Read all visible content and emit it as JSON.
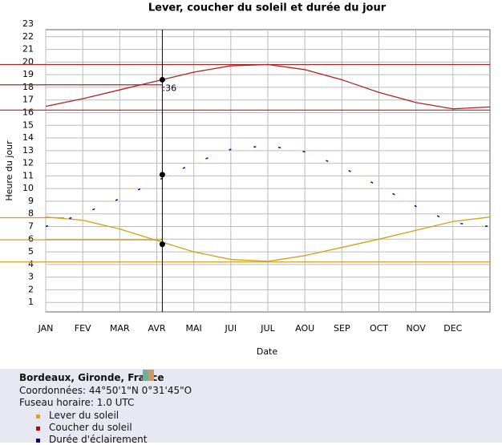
{
  "chart_data": {
    "type": "line",
    "title": "Lever, coucher du soleil et durée du jour",
    "y_label": "Heure du jour",
    "x_label": "Date",
    "xlim": [
      0,
      12
    ],
    "xticks": [
      {
        "value": 0,
        "label": "JAN"
      },
      {
        "value": 1,
        "label": "FEV"
      },
      {
        "value": 2,
        "label": "MAR"
      },
      {
        "value": 3,
        "label": "AVR"
      },
      {
        "value": 4,
        "label": "MAI"
      },
      {
        "value": 5,
        "label": "JUI"
      },
      {
        "value": 6,
        "label": "JUL"
      },
      {
        "value": 7,
        "label": "AOU"
      },
      {
        "value": 8,
        "label": "SEP"
      },
      {
        "value": 9,
        "label": "OCT"
      },
      {
        "value": 10,
        "label": "NOV"
      },
      {
        "value": 11,
        "label": "DEC"
      }
    ],
    "ylim": [
      0,
      23
    ],
    "yticks": [
      1,
      2,
      3,
      4,
      5,
      6,
      7,
      8,
      9,
      10,
      11,
      12,
      13,
      14,
      15,
      16,
      17,
      18,
      19,
      20,
      21,
      22,
      23
    ],
    "grid": true,
    "x": [
      0,
      1,
      2,
      3,
      4,
      5,
      6,
      7,
      8,
      9,
      10,
      11,
      12
    ],
    "series": [
      {
        "name": "Lever du soleil",
        "color": "#d4a017",
        "legend_color": "#f0a000",
        "values": [
          7.75,
          7.5,
          6.8,
          5.9,
          5.0,
          4.4,
          4.25,
          4.7,
          5.35,
          6.0,
          6.7,
          7.4,
          7.75
        ]
      },
      {
        "name": "Coucher du soleil",
        "color": "#b22222",
        "legend_color": "#d00000",
        "values": [
          16.5,
          17.1,
          17.8,
          18.5,
          19.2,
          19.7,
          19.8,
          19.4,
          18.6,
          17.6,
          16.8,
          16.3,
          16.45
        ]
      },
      {
        "name": "Durée d'éclairement",
        "color": "#0000c0",
        "legend_color": "#0000c0",
        "values": [
          7.0,
          8.0,
          9.2,
          10.6,
          12.0,
          13.1,
          13.4,
          12.9,
          11.7,
          10.2,
          8.6,
          7.3,
          7.0
        ]
      }
    ],
    "cursor": {
      "x": 3.15,
      "label": ":36",
      "values": [
        5.6,
        18.6,
        11.1
      ]
    },
    "guide_lines": [
      {
        "series": 1,
        "value": 19.8,
        "to": 12
      },
      {
        "series": 1,
        "value": 18.2,
        "to": 3.15
      },
      {
        "series": 1,
        "value": 16.2,
        "to": 12
      },
      {
        "series": 0,
        "value": 7.7,
        "to": 0.5
      },
      {
        "series": 0,
        "value": 5.95,
        "to": 3.15
      },
      {
        "series": 0,
        "value": 4.2,
        "to": 12
      }
    ]
  },
  "info": {
    "place": "Bordeaux, Gironde, France",
    "coords": "Coordonnées: 44°50'1\"N 0°31'45\"O",
    "timezone": "Fuseau horaire: 1.0 UTC"
  }
}
